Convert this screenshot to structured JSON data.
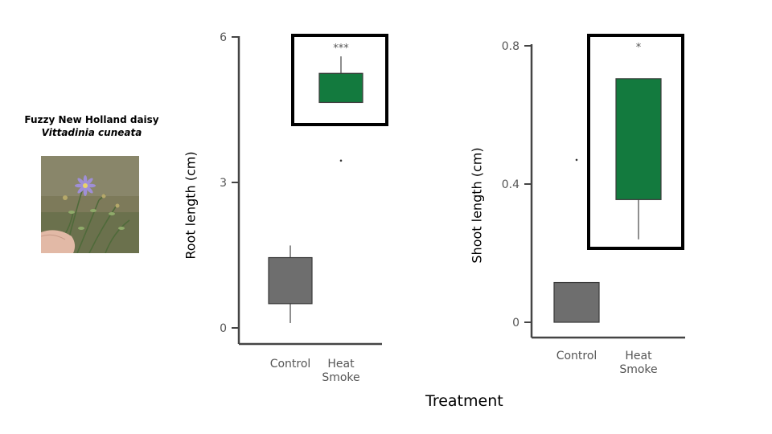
{
  "species": {
    "common_name": "Fuzzy New Holland daisy",
    "scientific_name": "Vittadinia cuneata"
  },
  "shared_xlabel": "Treatment",
  "colors": {
    "control": "#6e6e6e",
    "heat_smoke": "#137a3e",
    "highlight_border": "#000000"
  },
  "chart_data": [
    {
      "type": "box",
      "ylabel": "Root length (cm)",
      "ylim": [
        0,
        6
      ],
      "yticks": [
        0,
        3,
        6
      ],
      "categories": [
        "Control",
        "Heat\nSmoke"
      ],
      "boxes": [
        {
          "category": "Control",
          "whisker_low": 0.1,
          "q1": 0.5,
          "q3": 1.45,
          "whisker_high": 1.7,
          "outliers": []
        },
        {
          "category": "Heat\nSmoke",
          "whisker_low": 4.65,
          "q1": 4.65,
          "q3": 5.25,
          "whisker_high": 5.6,
          "outliers": [
            3.45
          ]
        }
      ],
      "significance": "***",
      "highlighted": "Heat\nSmoke"
    },
    {
      "type": "box",
      "ylabel": "Shoot length (cm)",
      "ylim": [
        0,
        0.8
      ],
      "yticks": [
        0,
        0.4,
        0.8
      ],
      "categories": [
        "Control",
        "Heat\nSmoke"
      ],
      "boxes": [
        {
          "category": "Control",
          "whisker_low": 0.0,
          "q1": 0.0,
          "q3": 0.115,
          "whisker_high": 0.115,
          "outliers": [
            0.47
          ]
        },
        {
          "category": "Heat\nSmoke",
          "whisker_low": 0.24,
          "q1": 0.355,
          "q3": 0.705,
          "whisker_high": 0.705,
          "outliers": []
        }
      ],
      "significance": "*",
      "highlighted": "Heat\nSmoke"
    }
  ]
}
